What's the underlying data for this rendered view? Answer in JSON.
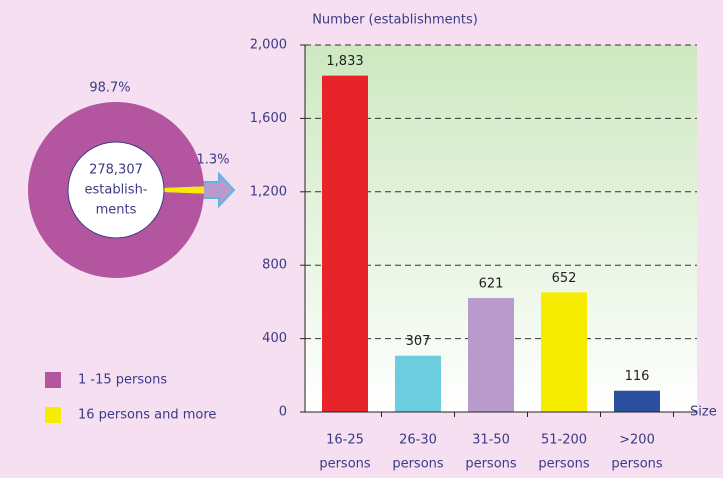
{
  "chart_data": [
    {
      "type": "pie",
      "categories": [
        "1 -15 persons",
        "16 persons and more"
      ],
      "values": [
        98.7,
        1.3
      ],
      "value_labels": [
        "98.7%",
        "1.3%"
      ],
      "colors": [
        "#b455a0",
        "#f5ec00"
      ],
      "center_label": [
        "278,307",
        "establish-",
        "ments"
      ]
    },
    {
      "type": "bar",
      "y_label": "Number (establishments)",
      "x_label": "Size",
      "categories": [
        [
          "16-25",
          "persons"
        ],
        [
          "26-30",
          "persons"
        ],
        [
          "31-50",
          "persons"
        ],
        [
          "51-200",
          "persons"
        ],
        [
          ">200",
          "persons"
        ]
      ],
      "values": [
        1833,
        307,
        621,
        652,
        116
      ],
      "value_labels": [
        "1,833",
        "307",
        "621",
        "652",
        "116"
      ],
      "colors": [
        "#e8242b",
        "#6dcde0",
        "#b89bcc",
        "#f5ec00",
        "#2d4fa0"
      ],
      "ylim": [
        0,
        2000
      ],
      "yticks": [
        0,
        400,
        800,
        {
          "value": 1200,
          "label": "1,200"
        },
        {
          "value": 1600,
          "label": "1,600"
        },
        {
          "value": 2000,
          "label": "2,000"
        }
      ],
      "grid": true
    }
  ]
}
